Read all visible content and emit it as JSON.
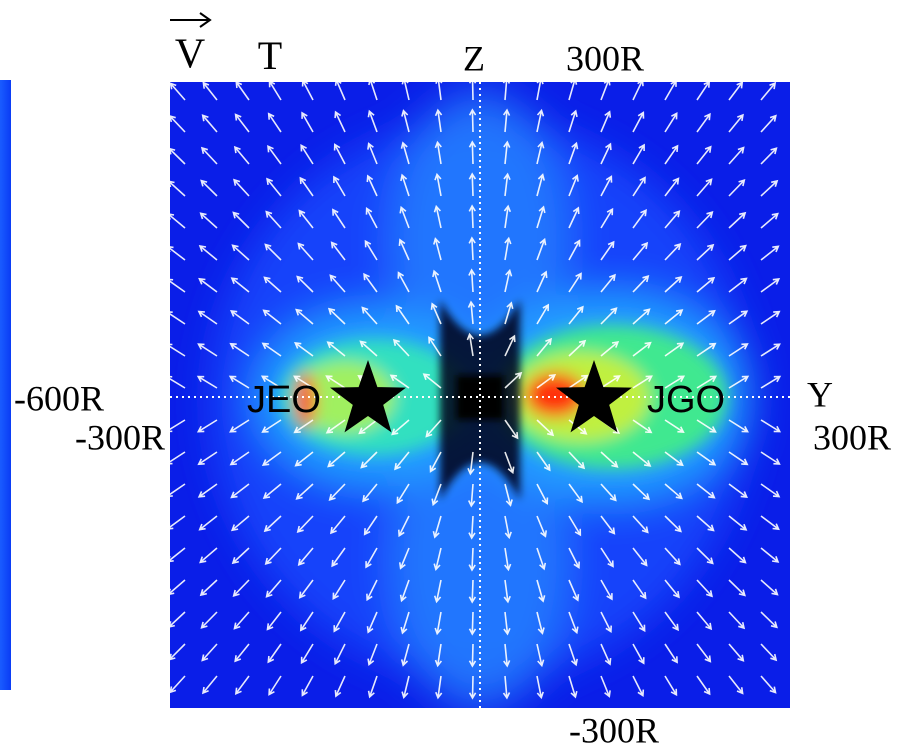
{
  "labels": {
    "velocity": "V",
    "t_axis": "T",
    "z_axis": "Z",
    "top_scale": "300R",
    "left_scale_outer": "-600R",
    "left_scale_inner": "-300R",
    "moon_left": "JEO",
    "moon_right": "JGO",
    "y_axis": "Y",
    "right_scale": "300R",
    "bottom_scale": "-300R"
  }
}
